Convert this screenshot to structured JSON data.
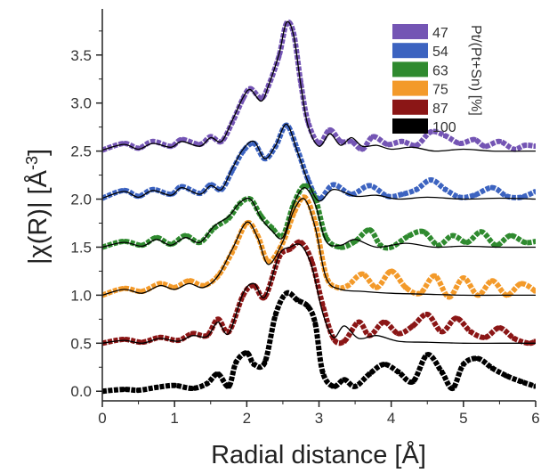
{
  "chart_data": {
    "type": "line",
    "title": "",
    "xlabel": "Radial distance [Å]",
    "ylabel": "|χ(R)| [Å",
    "ylabel_exp": "-3",
    "ylabel_close": "]",
    "xlim": [
      0,
      6
    ],
    "ylim": [
      -0.1,
      3.98
    ],
    "xticks": [
      "0",
      "1",
      "2",
      "3",
      "4",
      "5",
      "6"
    ],
    "yticks": [
      "0.0",
      "0.5",
      "1.0",
      "1.5",
      "2.0",
      "2.5",
      "3.0",
      "3.5"
    ],
    "grid": false,
    "legend": {
      "placement": "top-right",
      "title": "Pt/(Pt+Sn) [%]",
      "entries": [
        "47",
        "54",
        "63",
        "75",
        "87",
        "100"
      ]
    },
    "colors": {
      "47": "#7455b4",
      "54": "#3c63c0",
      "63": "#2f8a2f",
      "75": "#f39a2a",
      "87": "#8b1616",
      "100": "#000000",
      "fit": "#000000"
    },
    "series": [
      {
        "name": "47",
        "kind": "experiment",
        "x": [
          0,
          0.3,
          0.5,
          0.7,
          0.95,
          1.1,
          1.35,
          1.5,
          1.65,
          1.8,
          1.95,
          2.05,
          2.2,
          2.3,
          2.45,
          2.55,
          2.65,
          2.75,
          2.85,
          3.0,
          3.15,
          3.3,
          3.45,
          3.6,
          3.75,
          3.95,
          4.15,
          4.35,
          4.55,
          4.75,
          4.95,
          5.15,
          5.3,
          5.5,
          5.7,
          5.85,
          6.0
        ],
        "y": [
          2.51,
          2.58,
          2.53,
          2.6,
          2.55,
          2.62,
          2.57,
          2.65,
          2.6,
          2.8,
          3.05,
          3.15,
          3.05,
          3.18,
          3.5,
          3.83,
          3.72,
          3.2,
          2.8,
          2.58,
          2.72,
          2.6,
          2.6,
          2.52,
          2.65,
          2.57,
          2.6,
          2.56,
          2.7,
          2.66,
          2.58,
          2.62,
          2.55,
          2.6,
          2.52,
          2.56,
          2.55
        ]
      },
      {
        "name": "47",
        "kind": "fit",
        "x": [
          0,
          0.3,
          0.5,
          0.7,
          0.95,
          1.1,
          1.35,
          1.5,
          1.65,
          1.8,
          1.95,
          2.05,
          2.2,
          2.3,
          2.45,
          2.55,
          2.65,
          2.75,
          2.85,
          3.0,
          3.15,
          3.3,
          3.45,
          3.6,
          3.8,
          4.0,
          4.3,
          4.6,
          5.0,
          5.4,
          6.0
        ],
        "y": [
          2.51,
          2.57,
          2.52,
          2.58,
          2.54,
          2.6,
          2.55,
          2.64,
          2.6,
          2.82,
          3.06,
          3.14,
          3.02,
          3.18,
          3.52,
          3.84,
          3.7,
          3.18,
          2.76,
          2.55,
          2.68,
          2.56,
          2.64,
          2.55,
          2.56,
          2.52,
          2.54,
          2.5,
          2.52,
          2.5,
          2.5
        ]
      },
      {
        "name": "54",
        "kind": "experiment",
        "x": [
          0,
          0.3,
          0.5,
          0.7,
          0.95,
          1.1,
          1.35,
          1.5,
          1.65,
          1.8,
          1.95,
          2.1,
          2.25,
          2.4,
          2.55,
          2.7,
          2.85,
          3.0,
          3.2,
          3.45,
          3.7,
          3.95,
          4.15,
          4.35,
          4.55,
          4.75,
          4.95,
          5.15,
          5.4,
          5.6,
          5.8,
          6.0
        ],
        "y": [
          2.01,
          2.09,
          2.03,
          2.1,
          2.05,
          2.13,
          2.06,
          2.15,
          2.1,
          2.3,
          2.5,
          2.58,
          2.42,
          2.55,
          2.77,
          2.52,
          2.2,
          2.0,
          2.15,
          2.05,
          2.14,
          2.03,
          2.05,
          2.1,
          2.2,
          2.1,
          2.02,
          2.04,
          2.12,
          2.03,
          2.02,
          2.08
        ]
      },
      {
        "name": "54",
        "kind": "fit",
        "x": [
          0,
          0.3,
          0.5,
          0.7,
          0.95,
          1.1,
          1.35,
          1.5,
          1.65,
          1.8,
          1.95,
          2.1,
          2.25,
          2.4,
          2.55,
          2.7,
          2.85,
          3.0,
          3.2,
          3.5,
          3.8,
          4.1,
          4.5,
          5.0,
          5.5,
          6.0
        ],
        "y": [
          2.01,
          2.08,
          2.02,
          2.09,
          2.04,
          2.12,
          2.05,
          2.14,
          2.1,
          2.32,
          2.52,
          2.6,
          2.42,
          2.56,
          2.78,
          2.5,
          2.18,
          1.98,
          2.1,
          2.03,
          2.04,
          2.0,
          2.02,
          2.0,
          2.01,
          2.0
        ]
      },
      {
        "name": "63",
        "kind": "experiment",
        "x": [
          0,
          0.3,
          0.55,
          0.75,
          0.95,
          1.15,
          1.35,
          1.55,
          1.75,
          1.9,
          2.05,
          2.2,
          2.35,
          2.5,
          2.65,
          2.8,
          2.95,
          3.1,
          3.3,
          3.5,
          3.7,
          3.85,
          4.0,
          4.25,
          4.45,
          4.65,
          4.85,
          5.05,
          5.25,
          5.45,
          5.65,
          5.85,
          6.0
        ],
        "y": [
          1.5,
          1.56,
          1.52,
          1.6,
          1.53,
          1.62,
          1.55,
          1.7,
          1.8,
          1.95,
          2.0,
          1.82,
          1.7,
          1.62,
          1.95,
          2.14,
          2.0,
          1.6,
          1.5,
          1.56,
          1.68,
          1.52,
          1.5,
          1.62,
          1.66,
          1.52,
          1.62,
          1.55,
          1.66,
          1.52,
          1.62,
          1.55,
          1.56
        ]
      },
      {
        "name": "63",
        "kind": "fit",
        "x": [
          0,
          0.3,
          0.55,
          0.75,
          0.95,
          1.15,
          1.35,
          1.55,
          1.75,
          1.9,
          2.05,
          2.2,
          2.35,
          2.5,
          2.65,
          2.8,
          2.95,
          3.1,
          3.3,
          3.5,
          3.8,
          4.2,
          4.6,
          5.0,
          5.5,
          6.0
        ],
        "y": [
          1.5,
          1.55,
          1.51,
          1.58,
          1.52,
          1.6,
          1.55,
          1.72,
          1.82,
          1.96,
          2.0,
          1.8,
          1.67,
          1.6,
          1.95,
          2.12,
          1.94,
          1.56,
          1.52,
          1.58,
          1.5,
          1.54,
          1.5,
          1.51,
          1.5,
          1.5
        ]
      },
      {
        "name": "75",
        "kind": "experiment",
        "x": [
          0,
          0.3,
          0.55,
          0.8,
          1.0,
          1.2,
          1.4,
          1.6,
          1.8,
          2.0,
          2.15,
          2.3,
          2.5,
          2.65,
          2.8,
          2.95,
          3.1,
          3.25,
          3.4,
          3.6,
          3.8,
          4.0,
          4.2,
          4.4,
          4.6,
          4.8,
          5.0,
          5.2,
          5.4,
          5.6,
          5.8,
          6.0
        ],
        "y": [
          1.0,
          1.07,
          1.04,
          1.12,
          1.08,
          1.15,
          1.1,
          1.2,
          1.45,
          1.75,
          1.62,
          1.35,
          1.55,
          1.85,
          2.02,
          1.75,
          1.2,
          1.08,
          1.1,
          1.22,
          1.08,
          1.25,
          1.08,
          1.02,
          1.2,
          0.98,
          1.18,
          1.0,
          1.15,
          1.0,
          1.12,
          1.04
        ]
      },
      {
        "name": "75",
        "kind": "fit",
        "x": [
          0,
          0.3,
          0.55,
          0.8,
          1.0,
          1.2,
          1.4,
          1.6,
          1.8,
          2.0,
          2.15,
          2.3,
          2.5,
          2.65,
          2.8,
          2.95,
          3.1,
          3.3,
          3.6,
          4.0,
          4.5,
          5.0,
          5.5,
          6.0
        ],
        "y": [
          1.0,
          1.06,
          1.02,
          1.1,
          1.06,
          1.12,
          1.08,
          1.2,
          1.48,
          1.76,
          1.6,
          1.32,
          1.56,
          1.88,
          2.0,
          1.7,
          1.18,
          1.06,
          1.04,
          1.02,
          1.01,
          1.0,
          1.0,
          1.0
        ]
      },
      {
        "name": "87",
        "kind": "experiment",
        "x": [
          0,
          0.3,
          0.55,
          0.8,
          1.05,
          1.25,
          1.45,
          1.6,
          1.75,
          1.95,
          2.1,
          2.25,
          2.45,
          2.6,
          2.75,
          2.9,
          3.05,
          3.2,
          3.35,
          3.55,
          3.7,
          3.9,
          4.1,
          4.3,
          4.5,
          4.7,
          4.9,
          5.1,
          5.3,
          5.5,
          5.7,
          5.9,
          6.0
        ],
        "y": [
          0.5,
          0.54,
          0.51,
          0.56,
          0.53,
          0.6,
          0.58,
          0.75,
          0.62,
          1.0,
          1.1,
          0.98,
          1.4,
          1.48,
          1.55,
          1.35,
          0.9,
          0.55,
          0.52,
          0.72,
          0.58,
          0.72,
          0.6,
          0.68,
          0.8,
          0.62,
          0.76,
          0.62,
          0.56,
          0.66,
          0.55,
          0.5,
          0.52
        ]
      },
      {
        "name": "87",
        "kind": "fit",
        "x": [
          0,
          0.3,
          0.55,
          0.8,
          1.05,
          1.25,
          1.45,
          1.6,
          1.75,
          1.95,
          2.1,
          2.25,
          2.45,
          2.6,
          2.75,
          2.9,
          3.05,
          3.2,
          3.35,
          3.55,
          3.8,
          4.1,
          4.5,
          5.0,
          5.5,
          6.0
        ],
        "y": [
          0.5,
          0.53,
          0.5,
          0.55,
          0.52,
          0.58,
          0.57,
          0.72,
          0.6,
          1.02,
          1.12,
          0.98,
          1.42,
          1.5,
          1.52,
          1.3,
          0.82,
          0.56,
          0.68,
          0.55,
          0.58,
          0.52,
          0.51,
          0.5,
          0.5,
          0.5
        ]
      },
      {
        "name": "100",
        "kind": "experiment",
        "x": [
          0,
          0.3,
          0.5,
          0.75,
          1.0,
          1.25,
          1.45,
          1.6,
          1.75,
          1.85,
          2.0,
          2.1,
          2.25,
          2.4,
          2.55,
          2.7,
          2.85,
          2.95,
          3.05,
          3.2,
          3.35,
          3.5,
          3.7,
          3.9,
          4.1,
          4.3,
          4.5,
          4.7,
          4.85,
          5.0,
          5.2,
          5.4,
          5.6,
          5.8,
          6.0
        ],
        "y": [
          0.0,
          0.02,
          0.01,
          0.04,
          0.06,
          0.03,
          0.08,
          0.18,
          0.05,
          0.3,
          0.4,
          0.28,
          0.3,
          0.8,
          1.02,
          0.95,
          0.88,
          0.7,
          0.2,
          0.05,
          0.12,
          0.05,
          0.18,
          0.28,
          0.2,
          0.1,
          0.38,
          0.2,
          0.03,
          0.28,
          0.34,
          0.24,
          0.16,
          0.1,
          0.05
        ]
      }
    ]
  }
}
